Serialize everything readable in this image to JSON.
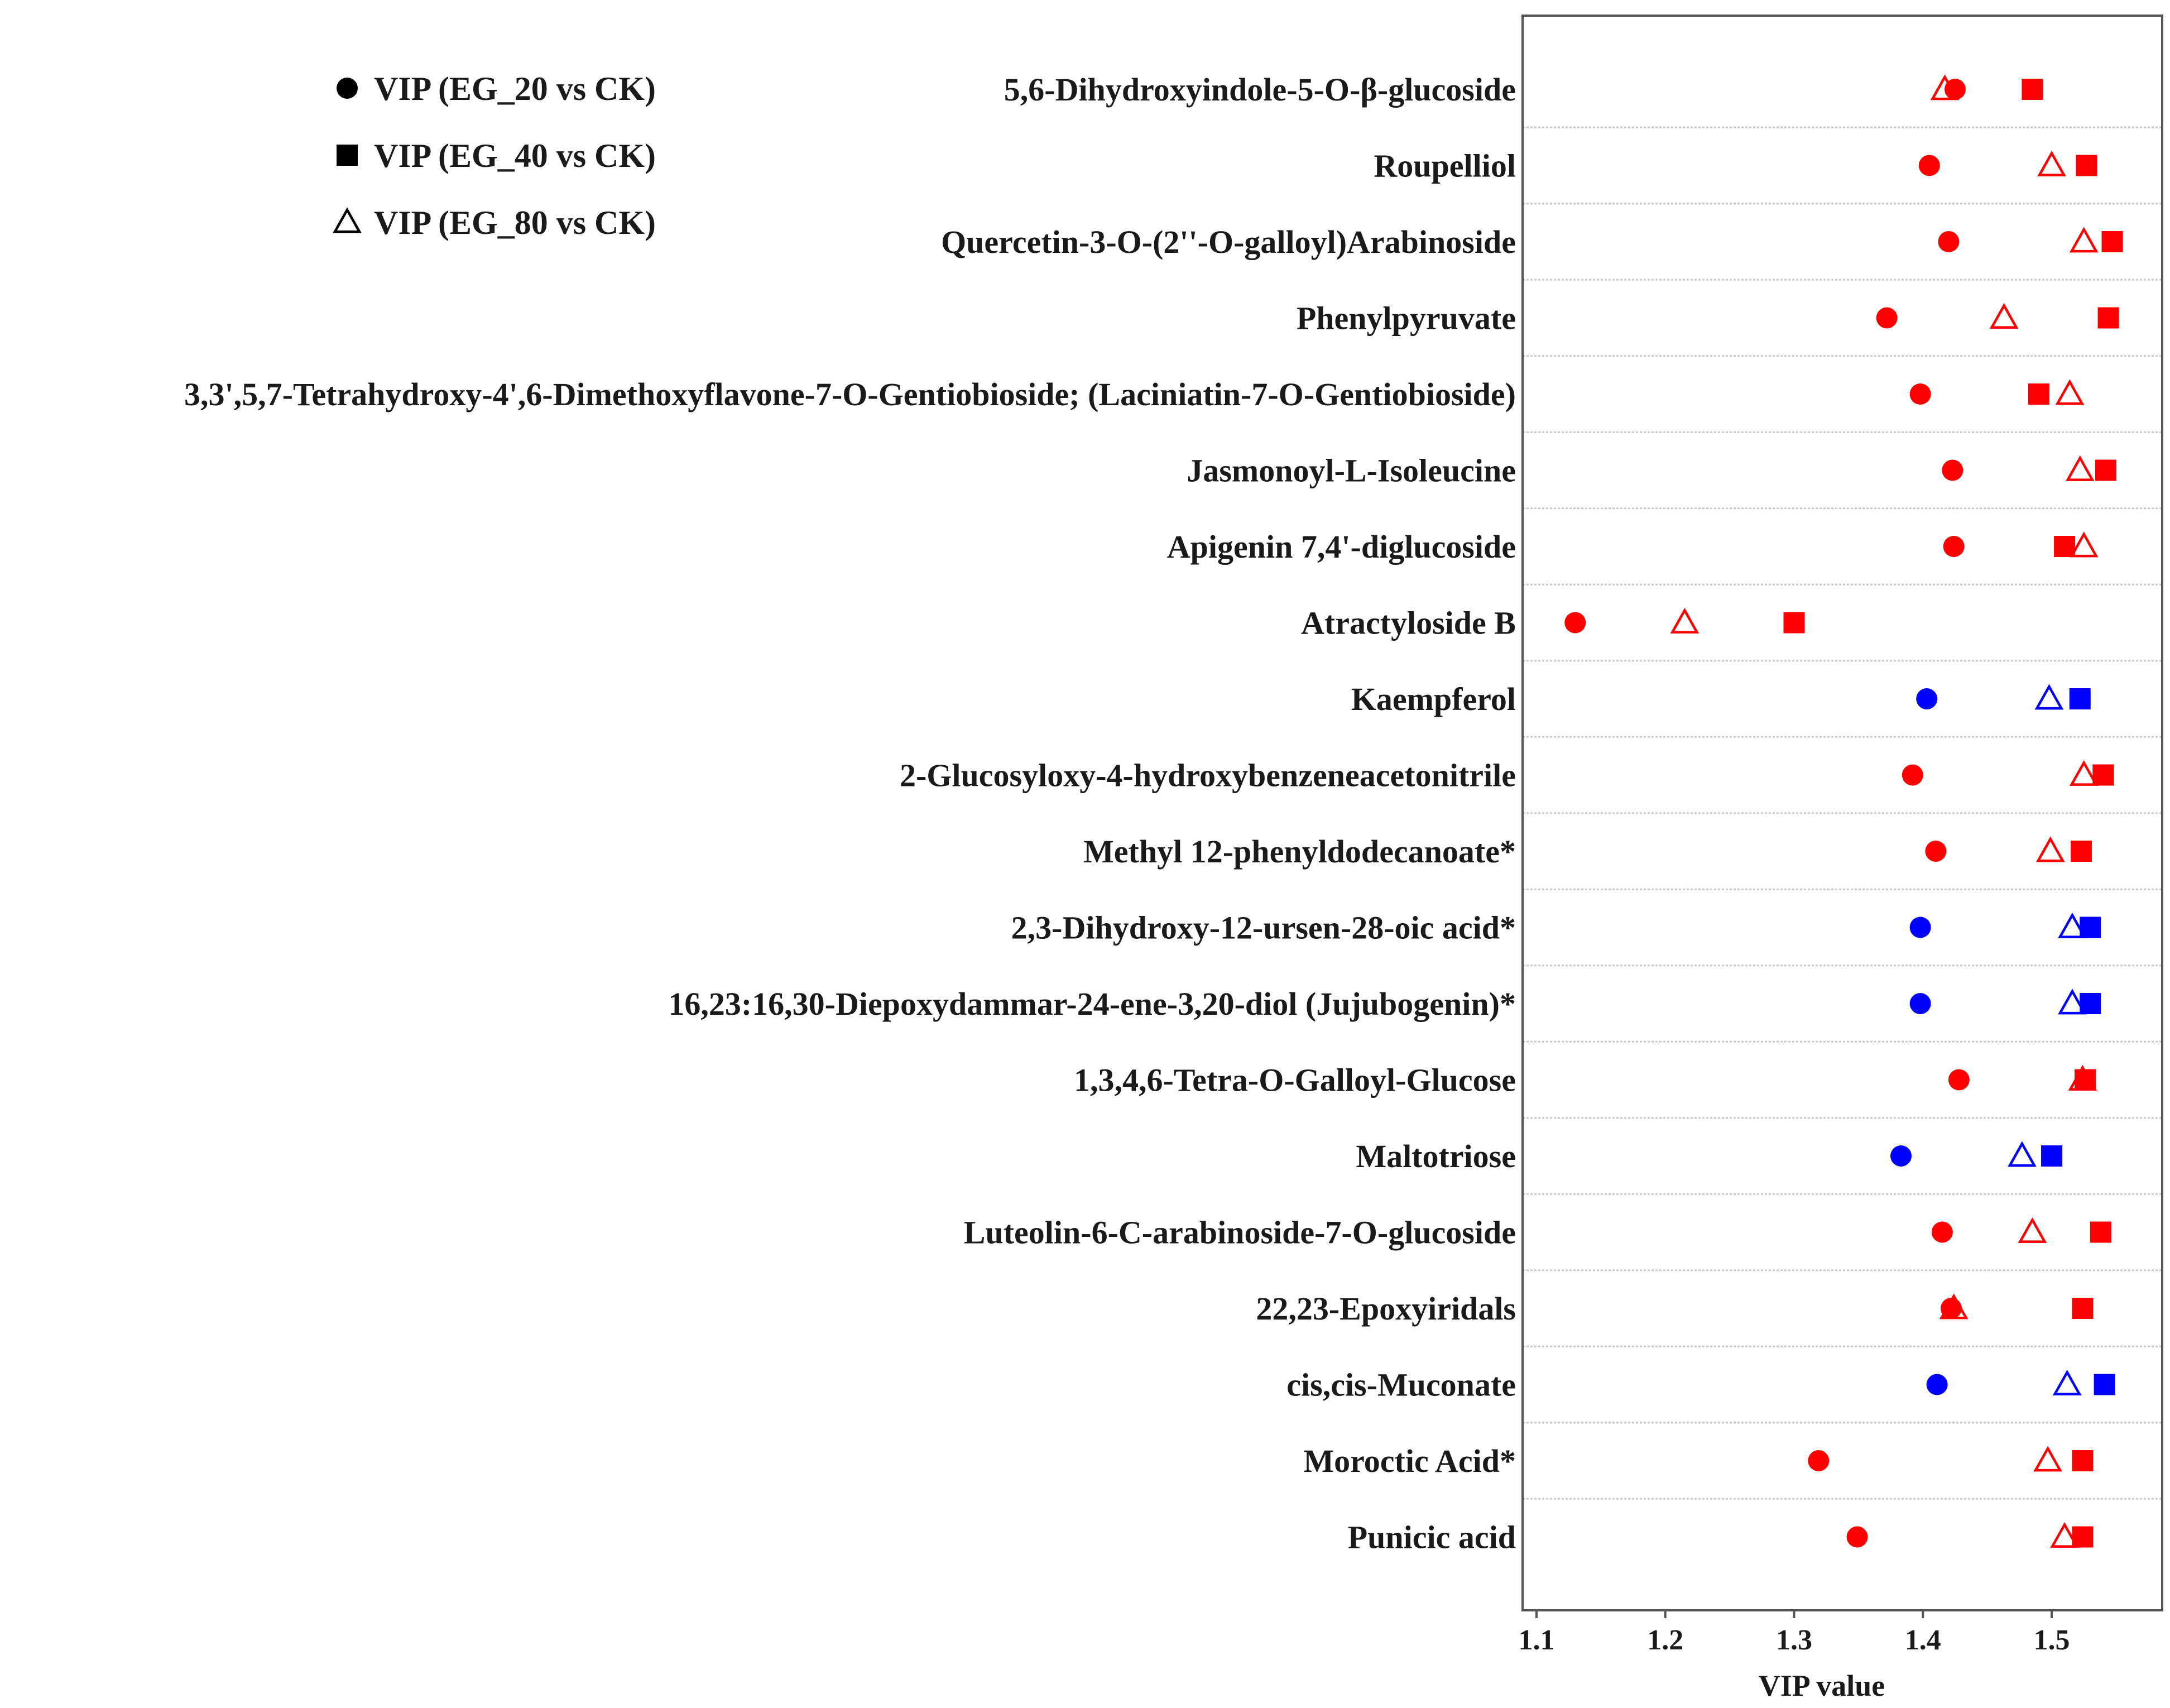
{
  "chart_data": {
    "type": "scatter",
    "xlabel": "VIP value",
    "xlim": [
      1.09,
      1.585
    ],
    "xticks": [
      "1.1",
      "1.2",
      "1.3",
      "1.4",
      "1.5"
    ],
    "grid": "horizontal dashed separators between rows",
    "legend_position": "top-left",
    "colors": {
      "red": "#ff0000",
      "blue": "#0000ff"
    },
    "legend": [
      {
        "marker": "circle",
        "label": "VIP (EG_20 vs CK)"
      },
      {
        "marker": "square",
        "label": "VIP (EG_40 vs CK)"
      },
      {
        "marker": "triangle",
        "label": "VIP (EG_80 vs CK)"
      }
    ],
    "rows": [
      {
        "label": "5,6-Dihydroxyindole-5-O-β-glucoside",
        "color": "red",
        "eg20": 1.425,
        "eg40": 1.485,
        "eg80": 1.417
      },
      {
        "label": "Roupelliol",
        "color": "red",
        "eg20": 1.405,
        "eg40": 1.527,
        "eg80": 1.5
      },
      {
        "label": "Quercetin-3-O-(2''-O-galloyl)Arabinoside",
        "color": "red",
        "eg20": 1.42,
        "eg40": 1.547,
        "eg80": 1.525
      },
      {
        "label": "Phenylpyruvate",
        "color": "red",
        "eg20": 1.372,
        "eg40": 1.544,
        "eg80": 1.463
      },
      {
        "label": "3,3',5,7-Tetrahydroxy-4',6-Dimethoxyflavone-7-O-Gentiobioside; (Laciniatin-7-O-Gentiobioside)",
        "color": "red",
        "eg20": 1.398,
        "eg40": 1.49,
        "eg80": 1.514
      },
      {
        "label": "Jasmonoyl-L-Isoleucine",
        "color": "red",
        "eg20": 1.423,
        "eg40": 1.542,
        "eg80": 1.522
      },
      {
        "label": "Apigenin 7,4'-diglucoside",
        "color": "red",
        "eg20": 1.424,
        "eg40": 1.51,
        "eg80": 1.525
      },
      {
        "label": "Atractyloside B",
        "color": "red",
        "eg20": 1.13,
        "eg40": 1.3,
        "eg80": 1.215
      },
      {
        "label": "Kaempferol",
        "color": "blue",
        "eg20": 1.403,
        "eg40": 1.522,
        "eg80": 1.498
      },
      {
        "label": "2-Glucosyloxy-4-hydroxybenzeneacetonitrile",
        "color": "red",
        "eg20": 1.392,
        "eg40": 1.54,
        "eg80": 1.525
      },
      {
        "label": "Methyl 12-phenyldodecanoate*",
        "color": "red",
        "eg20": 1.41,
        "eg40": 1.523,
        "eg80": 1.499
      },
      {
        "label": "2,3-Dihydroxy-12-ursen-28-oic acid*",
        "color": "blue",
        "eg20": 1.398,
        "eg40": 1.53,
        "eg80": 1.516
      },
      {
        "label": "16,23:16,30-Diepoxydammar-24-ene-3,20-diol (Jujubogenin)*",
        "color": "blue",
        "eg20": 1.398,
        "eg40": 1.53,
        "eg80": 1.516
      },
      {
        "label": "1,3,4,6-Tetra-O-Galloyl-Glucose",
        "color": "red",
        "eg20": 1.428,
        "eg40": 1.526,
        "eg80": 1.524
      },
      {
        "label": "Maltotriose",
        "color": "blue",
        "eg20": 1.383,
        "eg40": 1.5,
        "eg80": 1.477
      },
      {
        "label": "Luteolin-6-C-arabinoside-7-O-glucoside",
        "color": "red",
        "eg20": 1.415,
        "eg40": 1.538,
        "eg80": 1.485
      },
      {
        "label": "22,23-Epoxyiridals",
        "color": "red",
        "eg20": 1.422,
        "eg40": 1.524,
        "eg80": 1.424
      },
      {
        "label": "cis,cis-Muconate",
        "color": "blue",
        "eg20": 1.411,
        "eg40": 1.541,
        "eg80": 1.512
      },
      {
        "label": "Moroctic Acid*",
        "color": "red",
        "eg20": 1.319,
        "eg40": 1.524,
        "eg80": 1.497
      },
      {
        "label": "Punicic acid",
        "color": "red",
        "eg20": 1.349,
        "eg40": 1.524,
        "eg80": 1.51
      }
    ]
  }
}
